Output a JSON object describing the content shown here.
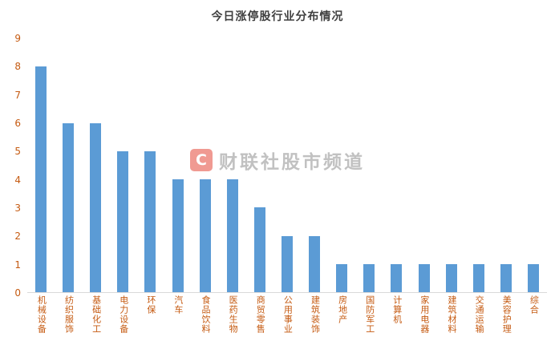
{
  "chart_data": {
    "type": "bar",
    "title": "今日涨停股行业分布情况",
    "categories": [
      "机械设备",
      "纺织服饰",
      "基础化工",
      "电力设备",
      "环保",
      "汽车",
      "食品饮料",
      "医药生物",
      "商贸零售",
      "公用事业",
      "建筑装饰",
      "房地产",
      "国防军工",
      "计算机",
      "家用电器",
      "建筑材料",
      "交通运输",
      "美容护理",
      "综合"
    ],
    "values": [
      8,
      6,
      6,
      5,
      5,
      4,
      4,
      4,
      3,
      2,
      2,
      1,
      1,
      1,
      1,
      1,
      1,
      1,
      1
    ],
    "xlabel": "",
    "ylabel": "",
    "ylim": [
      0,
      9
    ],
    "yticks": [
      0,
      1,
      2,
      3,
      4,
      5,
      6,
      7,
      8,
      9
    ],
    "grid": false,
    "legend": "none"
  },
  "colors": {
    "bar": "#5b9bd5",
    "axis_tick_label": "#c55a11",
    "category_label": "#c55a11",
    "title": "#3f3f3f",
    "watermark_logo_bg": "#e5493a",
    "watermark_text": "#8f8f8f"
  },
  "watermark": {
    "logo_letter": "C",
    "text": "财联社股市频道"
  }
}
